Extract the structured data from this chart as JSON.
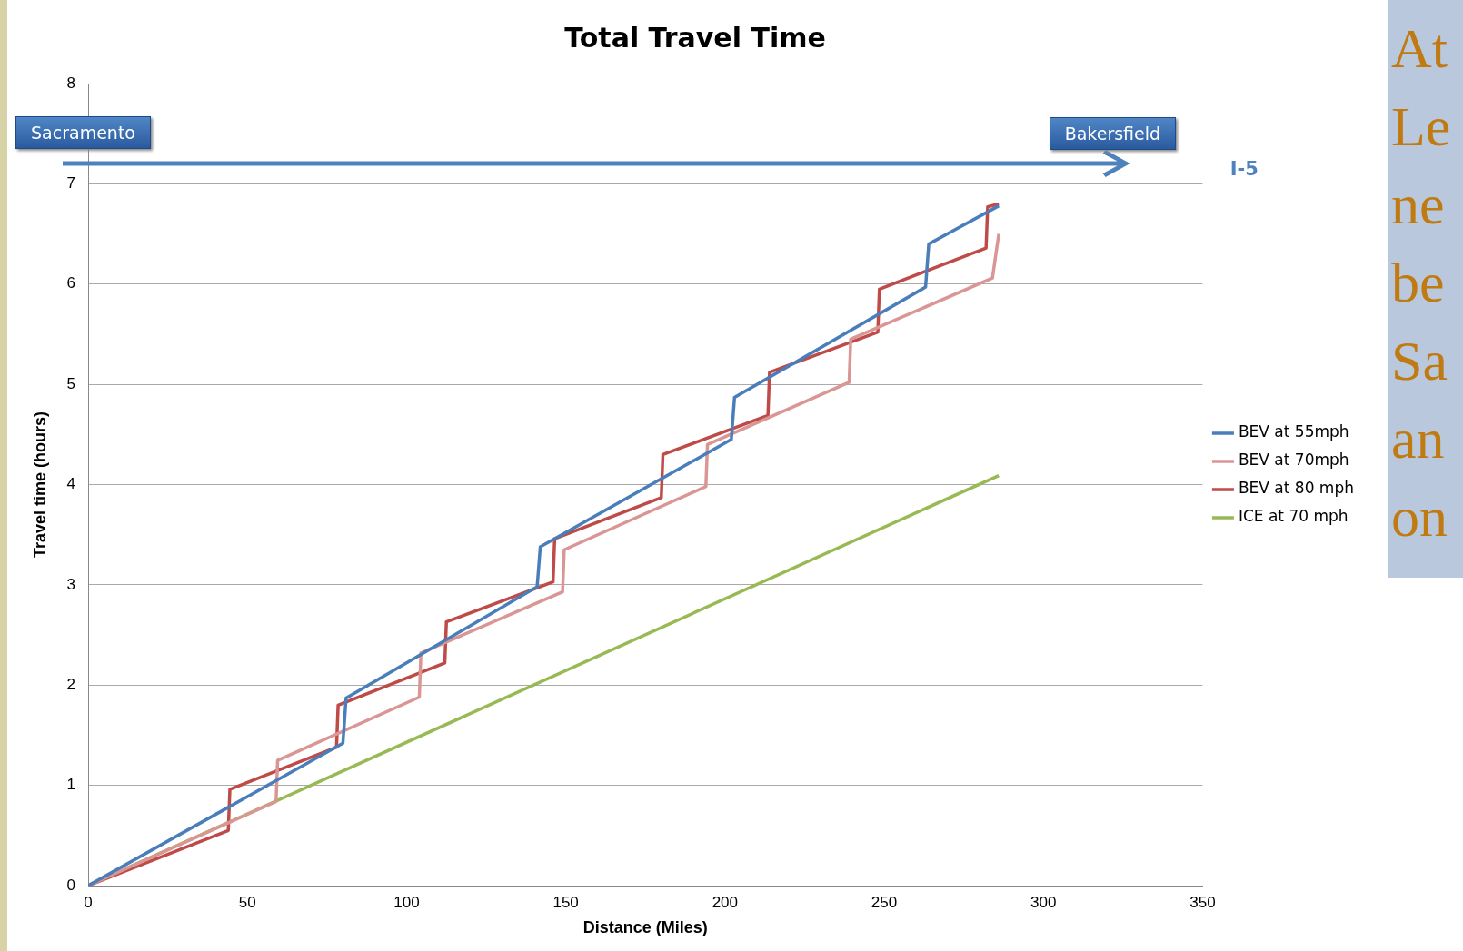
{
  "chart_data": {
    "type": "line",
    "title": "Total Travel Time",
    "xlabel": "Distance (Miles)",
    "ylabel": "Travel time (hours)",
    "xlim": [
      0,
      350
    ],
    "xticks": [
      0,
      50,
      100,
      150,
      200,
      250,
      300,
      350
    ],
    "ylim": [
      0,
      8
    ],
    "yticks": [
      0,
      1,
      2,
      3,
      4,
      5,
      6,
      7,
      8
    ],
    "grid": "y",
    "legend": "right",
    "marker": "none",
    "line_style": "solid",
    "series": [
      {
        "name": "BEV at 55mph",
        "color": "#4a7ebb",
        "x": [
          0,
          80,
          81,
          141,
          142,
          202,
          203,
          263,
          264,
          286
        ],
        "values": [
          0,
          1.42,
          1.87,
          2.98,
          3.38,
          4.45,
          4.87,
          5.97,
          6.4,
          6.78
        ]
      },
      {
        "name": "BEV at 70mph",
        "color": "#d99694",
        "x": [
          0,
          59,
          59.5,
          104,
          104.5,
          149,
          149.5,
          194,
          194.5,
          239,
          239.5,
          284,
          286
        ],
        "values": [
          0,
          0.84,
          1.25,
          1.88,
          2.32,
          2.93,
          3.35,
          3.98,
          4.4,
          5.02,
          5.45,
          6.06,
          6.5
        ]
      },
      {
        "name": "BEV at 80 mph",
        "color": "#be4b48",
        "x": [
          0,
          44,
          44.5,
          78,
          78.5,
          112,
          112.5,
          146,
          146.5,
          180,
          180.5,
          213.5,
          214,
          248,
          248.5,
          282,
          282.5,
          286
        ],
        "values": [
          0,
          0.55,
          0.96,
          1.38,
          1.8,
          2.22,
          2.63,
          3.03,
          3.46,
          3.87,
          4.3,
          4.69,
          5.12,
          5.52,
          5.95,
          6.36,
          6.77,
          6.8
        ]
      },
      {
        "name": "ICE at 70 mph",
        "color": "#98b954",
        "x": [
          0,
          286
        ],
        "values": [
          0,
          4.09
        ]
      }
    ],
    "annotations": [
      "Sacramento",
      "Bakersfield",
      "I-5",
      "At Le ne be Sa an on"
    ]
  }
}
